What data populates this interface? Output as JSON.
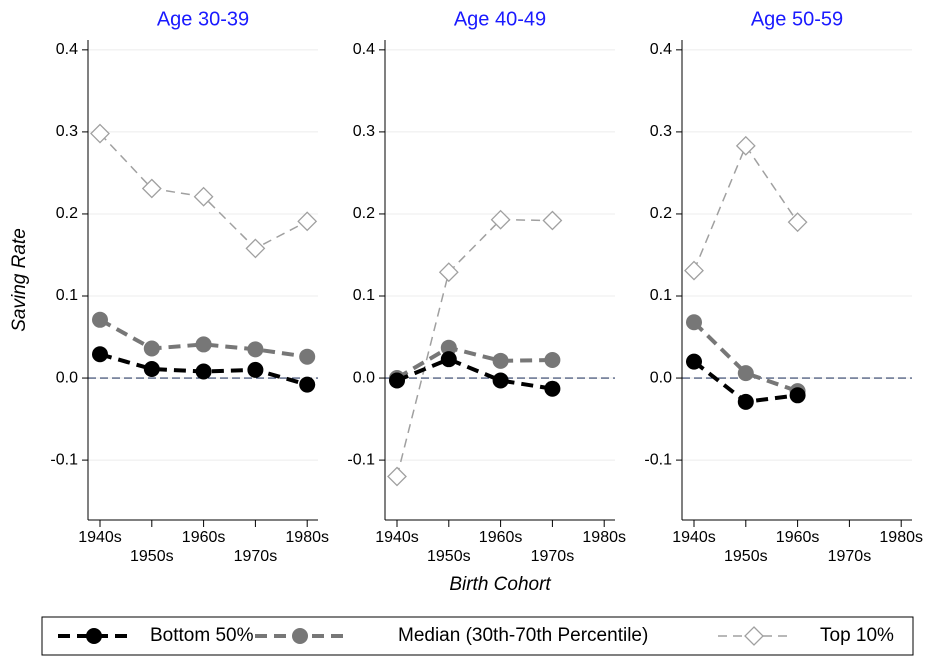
{
  "chart_data": [
    {
      "type": "line",
      "title": "Age 30-39",
      "y_label": "Saving Rate",
      "categories": [
        "1940s",
        "1950s",
        "1960s",
        "1970s",
        "1980s"
      ],
      "series": [
        {
          "name": "Bottom 50%",
          "color": "#000000",
          "marker": "circle",
          "values": [
            0.029,
            0.011,
            0.008,
            0.01,
            -0.008
          ]
        },
        {
          "name": "Median (30th-70th Percentile)",
          "color": "#777777",
          "marker": "circle",
          "values": [
            0.071,
            0.036,
            0.041,
            0.035,
            0.026
          ]
        },
        {
          "name": "Top 10%",
          "color": "#a0a0a0",
          "marker": "diamond",
          "values": [
            0.298,
            0.231,
            0.221,
            0.158,
            0.191
          ]
        }
      ],
      "ylim": [
        -0.173,
        0.412
      ],
      "yticks": [
        -0.1,
        {
          "value": 0,
          "label": "0.0"
        },
        0.1,
        0.2,
        0.3,
        0.4
      ],
      "hline": 0,
      "grid": true
    },
    {
      "type": "line",
      "title": "Age 40-49",
      "x_label": "Birth Cohort",
      "categories": [
        "1940s",
        "1950s",
        "1960s",
        "1970s",
        "1980s"
      ],
      "series": [
        {
          "name": "Bottom 50%",
          "color": "#000000",
          "marker": "circle",
          "values": [
            -0.003,
            0.023,
            -0.003,
            -0.013,
            null
          ]
        },
        {
          "name": "Median (30th-70th Percentile)",
          "color": "#777777",
          "marker": "circle",
          "values": [
            0.0,
            0.037,
            0.021,
            0.022,
            null
          ]
        },
        {
          "name": "Top 10%",
          "color": "#a0a0a0",
          "marker": "diamond",
          "values": [
            -0.12,
            0.129,
            0.193,
            0.192,
            null
          ]
        }
      ],
      "ylim": [
        -0.173,
        0.412
      ],
      "yticks": [
        -0.1,
        {
          "value": 0,
          "label": "0.0"
        },
        0.1,
        0.2,
        0.3,
        0.4
      ],
      "hline": 0,
      "grid": true
    },
    {
      "type": "line",
      "title": "Age 50-59",
      "categories": [
        "1940s",
        "1950s",
        "1960s",
        "1970s",
        "1980s"
      ],
      "series": [
        {
          "name": "Bottom 50%",
          "color": "#000000",
          "marker": "circle",
          "values": [
            0.02,
            -0.029,
            -0.021,
            null,
            null
          ]
        },
        {
          "name": "Median (30th-70th Percentile)",
          "color": "#777777",
          "marker": "circle",
          "values": [
            0.068,
            0.006,
            -0.016,
            null,
            null
          ]
        },
        {
          "name": "Top 10%",
          "color": "#a0a0a0",
          "marker": "diamond",
          "values": [
            0.131,
            0.283,
            0.19,
            null,
            null
          ]
        }
      ],
      "ylim": [
        -0.173,
        0.412
      ],
      "yticks": [
        -0.1,
        {
          "value": 0,
          "label": "0.0"
        },
        0.1,
        0.2,
        0.3,
        0.4
      ],
      "hline": 0,
      "grid": true
    }
  ]
}
